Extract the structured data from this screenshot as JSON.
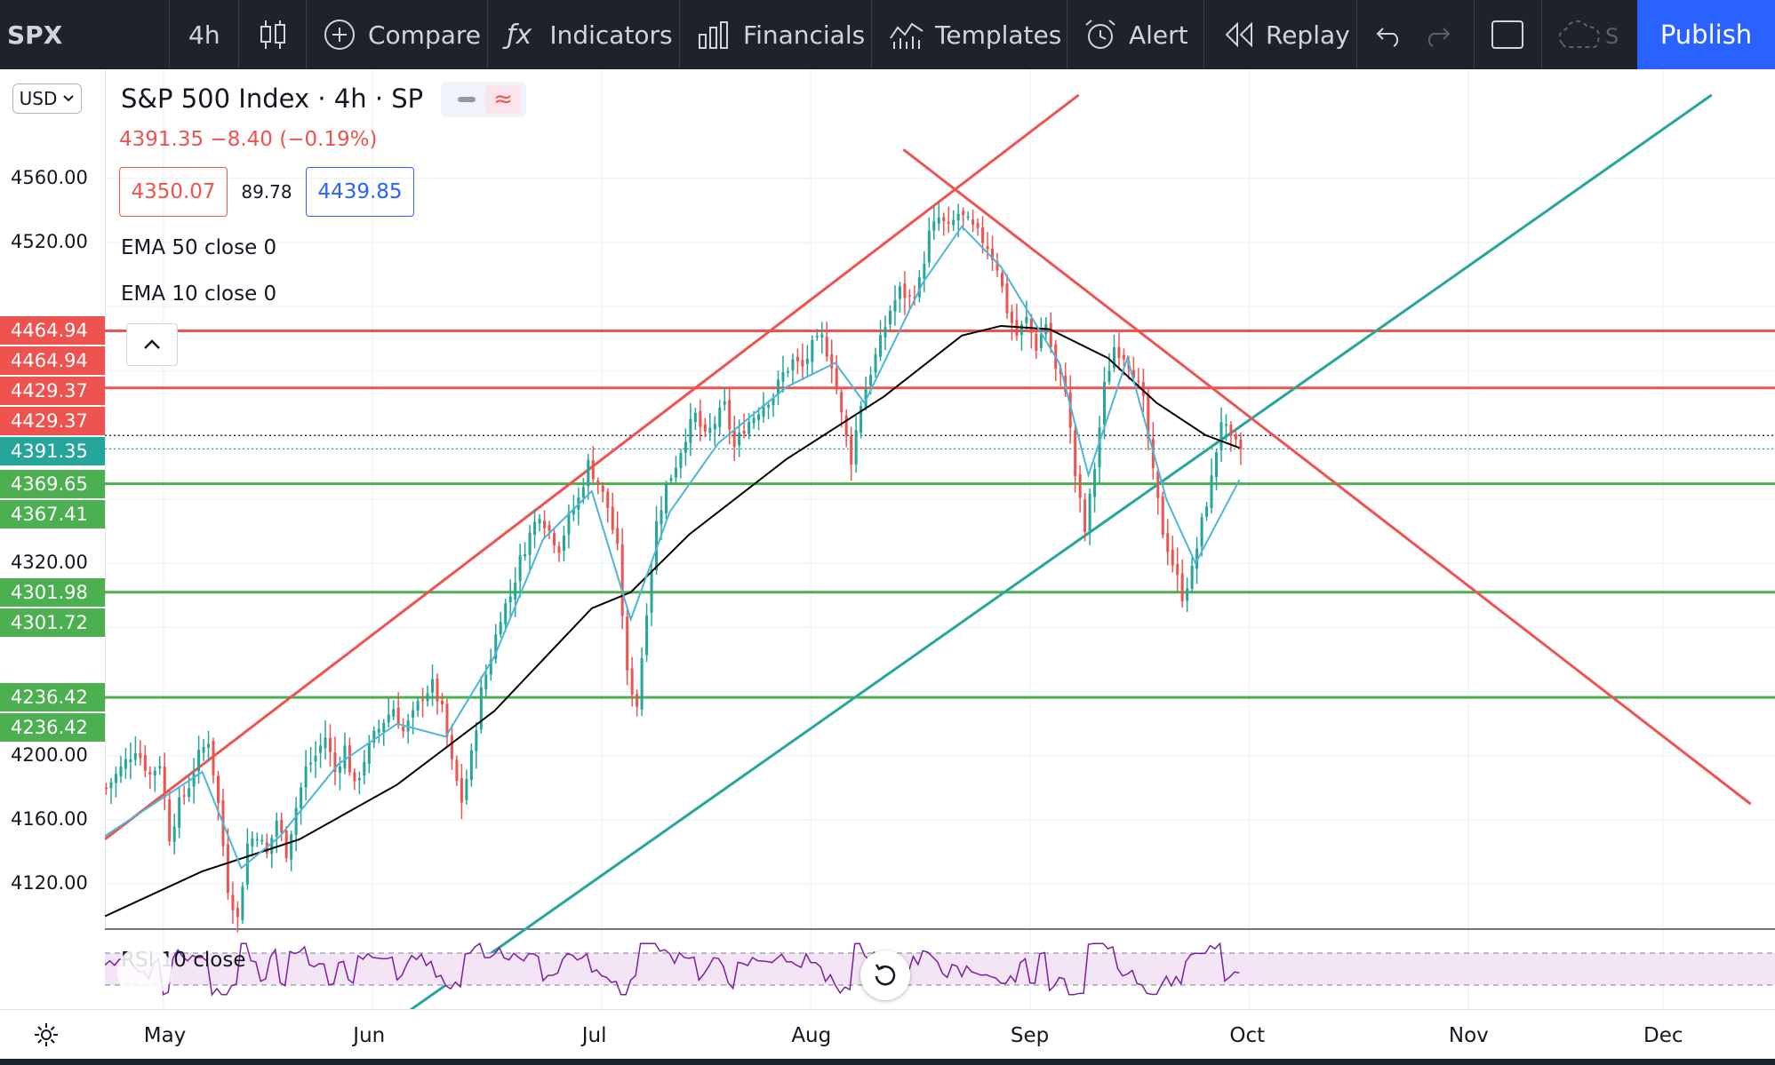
{
  "toolbar": {
    "symbol": "SPX",
    "interval": "4h",
    "compare": "Compare",
    "indicators": "Indicators",
    "financials": "Financials",
    "templates": "Templates",
    "alert": "Alert",
    "replay": "Replay",
    "publish": "Publish"
  },
  "legend": {
    "title": "S&P 500 Index · 4h · SP",
    "change": "4391.35  −8.40 (−0.19%)",
    "bid": "4350.07",
    "spread": "89.78",
    "ask": "4439.85",
    "ema50": "EMA 50 close 0",
    "ema10": "EMA 10 close 0"
  },
  "currency": "USD",
  "rsi_label": "RSI 10 close",
  "colors": {
    "up": "#26a69a",
    "down": "#ef5350",
    "ema10": "#4bb6d9",
    "ema50": "#000000",
    "resistance": "#ef5350",
    "support": "#4caf50",
    "channel_upper": "#ef5350",
    "channel_lower": "#26a69a",
    "rsi": "#7b1fa2"
  },
  "chart_data": {
    "type": "candlestick",
    "y_ticks": [
      "4560.00",
      "4520.00",
      "4320.00",
      "4200.00",
      "4160.00",
      "4120.00"
    ],
    "x_ticks": [
      "May",
      "Jun",
      "Jul",
      "Aug",
      "Sep",
      "Oct",
      "Nov",
      "Dec"
    ],
    "price_badges": [
      {
        "value": "4464.94",
        "kind": "resistance"
      },
      {
        "value": "4464.94",
        "kind": "resistance"
      },
      {
        "value": "4429.37",
        "kind": "resistance"
      },
      {
        "value": "4429.37",
        "kind": "resistance"
      },
      {
        "value": "4391.35",
        "kind": "last"
      },
      {
        "value": "4369.65",
        "kind": "support"
      },
      {
        "value": "4367.41",
        "kind": "support"
      },
      {
        "value": "4301.98",
        "kind": "support"
      },
      {
        "value": "4301.72",
        "kind": "support"
      },
      {
        "value": "4236.42",
        "kind": "support"
      },
      {
        "value": "4236.42",
        "kind": "support"
      }
    ],
    "horizontal_levels": [
      {
        "price": 4464.94,
        "color": "#ef5350"
      },
      {
        "price": 4429.37,
        "color": "#ef5350"
      },
      {
        "price": 4369.65,
        "color": "#4caf50"
      },
      {
        "price": 4301.98,
        "color": "#4caf50"
      },
      {
        "price": 4236.42,
        "color": "#4caf50"
      }
    ],
    "last_price": 4391.35,
    "prev_close": 4399.75,
    "price_path": [
      [
        0,
        4180
      ],
      [
        3,
        4192
      ],
      [
        6,
        4205
      ],
      [
        9,
        4188
      ],
      [
        11,
        4196
      ],
      [
        13,
        4150
      ],
      [
        15,
        4170
      ],
      [
        17,
        4182
      ],
      [
        19,
        4200
      ],
      [
        21,
        4210
      ],
      [
        23,
        4170
      ],
      [
        25,
        4118
      ],
      [
        27,
        4098
      ],
      [
        29,
        4145
      ],
      [
        31,
        4152
      ],
      [
        33,
        4138
      ],
      [
        35,
        4160
      ],
      [
        37,
        4140
      ],
      [
        39,
        4168
      ],
      [
        41,
        4192
      ],
      [
        43,
        4200
      ],
      [
        45,
        4212
      ],
      [
        47,
        4190
      ],
      [
        49,
        4205
      ],
      [
        51,
        4180
      ],
      [
        53,
        4198
      ],
      [
        55,
        4212
      ],
      [
        57,
        4222
      ],
      [
        59,
        4230
      ],
      [
        61,
        4215
      ],
      [
        63,
        4225
      ],
      [
        65,
        4238
      ],
      [
        67,
        4244
      ],
      [
        69,
        4228
      ],
      [
        71,
        4195
      ],
      [
        73,
        4172
      ],
      [
        75,
        4200
      ],
      [
        77,
        4240
      ],
      [
        79,
        4262
      ],
      [
        81,
        4288
      ],
      [
        83,
        4300
      ],
      [
        85,
        4322
      ],
      [
        87,
        4338
      ],
      [
        89,
        4352
      ],
      [
        91,
        4340
      ],
      [
        93,
        4330
      ],
      [
        95,
        4348
      ],
      [
        97,
        4360
      ],
      [
        99,
        4382
      ],
      [
        101,
        4370
      ],
      [
        103,
        4355
      ],
      [
        105,
        4328
      ],
      [
        107,
        4250
      ],
      [
        109,
        4232
      ],
      [
        111,
        4292
      ],
      [
        113,
        4345
      ],
      [
        115,
        4368
      ],
      [
        117,
        4382
      ],
      [
        119,
        4400
      ],
      [
        121,
        4412
      ],
      [
        123,
        4398
      ],
      [
        125,
        4408
      ],
      [
        127,
        4418
      ],
      [
        129,
        4392
      ],
      [
        131,
        4405
      ],
      [
        133,
        4412
      ],
      [
        135,
        4420
      ],
      [
        137,
        4425
      ],
      [
        139,
        4438
      ],
      [
        141,
        4446
      ],
      [
        143,
        4442
      ],
      [
        145,
        4455
      ],
      [
        147,
        4460
      ],
      [
        149,
        4445
      ],
      [
        151,
        4412
      ],
      [
        153,
        4385
      ],
      [
        155,
        4420
      ],
      [
        157,
        4440
      ],
      [
        159,
        4458
      ],
      [
        161,
        4478
      ],
      [
        163,
        4490
      ],
      [
        165,
        4485
      ],
      [
        167,
        4495
      ],
      [
        169,
        4525
      ],
      [
        171,
        4535
      ],
      [
        173,
        4528
      ],
      [
        175,
        4538
      ],
      [
        177,
        4532
      ],
      [
        179,
        4525
      ],
      [
        181,
        4518
      ],
      [
        183,
        4505
      ],
      [
        185,
        4478
      ],
      [
        187,
        4462
      ],
      [
        189,
        4472
      ],
      [
        191,
        4455
      ],
      [
        193,
        4470
      ],
      [
        195,
        4440
      ],
      [
        197,
        4430
      ],
      [
        199,
        4375
      ],
      [
        201,
        4340
      ],
      [
        203,
        4380
      ],
      [
        205,
        4430
      ],
      [
        207,
        4455
      ],
      [
        209,
        4450
      ],
      [
        211,
        4440
      ],
      [
        213,
        4420
      ],
      [
        215,
        4375
      ],
      [
        217,
        4340
      ],
      [
        219,
        4320
      ],
      [
        221,
        4300
      ],
      [
        223,
        4315
      ],
      [
        225,
        4345
      ],
      [
        227,
        4372
      ],
      [
        229,
        4410
      ],
      [
        231,
        4395
      ],
      [
        233,
        4392
      ]
    ],
    "ema10": [
      [
        0,
        4150
      ],
      [
        20,
        4190
      ],
      [
        28,
        4130
      ],
      [
        36,
        4150
      ],
      [
        48,
        4195
      ],
      [
        60,
        4220
      ],
      [
        70,
        4212
      ],
      [
        80,
        4262
      ],
      [
        90,
        4335
      ],
      [
        100,
        4365
      ],
      [
        108,
        4285
      ],
      [
        116,
        4352
      ],
      [
        126,
        4395
      ],
      [
        140,
        4430
      ],
      [
        150,
        4445
      ],
      [
        156,
        4420
      ],
      [
        168,
        4495
      ],
      [
        176,
        4530
      ],
      [
        184,
        4505
      ],
      [
        196,
        4445
      ],
      [
        202,
        4375
      ],
      [
        210,
        4448
      ],
      [
        218,
        4360
      ],
      [
        224,
        4320
      ],
      [
        233,
        4372
      ]
    ],
    "ema50": [
      [
        0,
        4100
      ],
      [
        20,
        4128
      ],
      [
        40,
        4148
      ],
      [
        60,
        4182
      ],
      [
        80,
        4228
      ],
      [
        100,
        4292
      ],
      [
        108,
        4302
      ],
      [
        120,
        4338
      ],
      [
        140,
        4385
      ],
      [
        160,
        4424
      ],
      [
        176,
        4462
      ],
      [
        184,
        4468
      ],
      [
        194,
        4466
      ],
      [
        206,
        4448
      ],
      [
        216,
        4420
      ],
      [
        226,
        4400
      ],
      [
        233,
        4392
      ]
    ],
    "trendlines": [
      {
        "name": "channel-upper",
        "color": "#ef5350",
        "from": [
          0,
          4148
        ],
        "to": [
          200,
          4612
        ]
      },
      {
        "name": "channel-lower",
        "color": "#26a69a",
        "from": [
          62,
          4040
        ],
        "to": [
          330,
          4612
        ]
      },
      {
        "name": "descending",
        "color": "#ef5350",
        "from": [
          164,
          4578
        ],
        "to": [
          338,
          4170
        ]
      }
    ],
    "x_tick_index": {
      "May": 12,
      "Jun": 55,
      "Jul": 102,
      "Aug": 145,
      "Sep": 190,
      "Oct": 235,
      "Nov": 280,
      "Dec": 320
    },
    "y_range": [
      4092,
      4628
    ],
    "x_range": [
      0,
      343
    ],
    "rsi_band": [
      30,
      70
    ]
  }
}
